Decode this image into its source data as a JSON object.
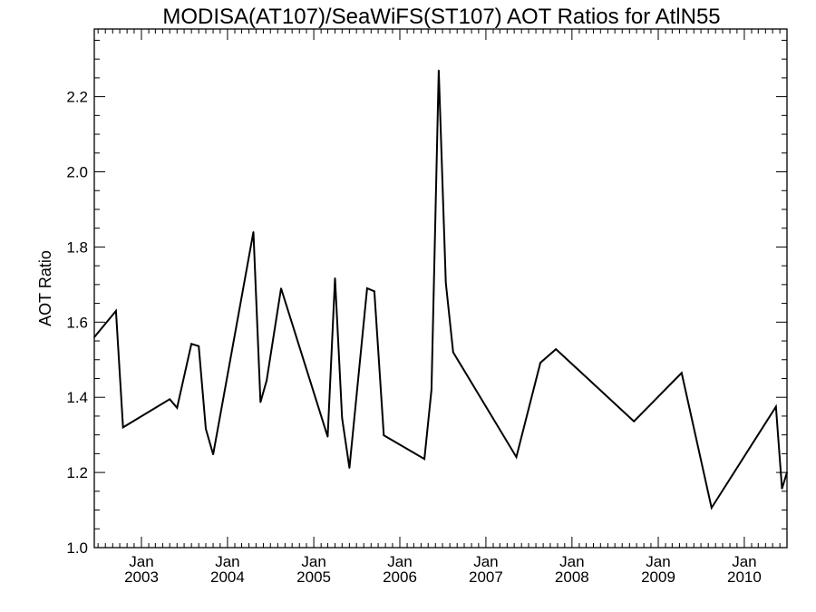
{
  "chart_data": {
    "type": "line",
    "title": "MODISA(AT107)/SeaWiFS(ST107)  AOT Ratios for AtlN55",
    "xlabel": "",
    "ylabel": "AOT Ratio",
    "xlim": [
      "2002-06-15",
      "2010-07-01"
    ],
    "ylim": [
      1.0,
      2.38
    ],
    "y_ticks": [
      "1.0",
      "1.2",
      "1.4",
      "1.6",
      "1.8",
      "2.0",
      "2.2"
    ],
    "x_ticks": [
      {
        "date": "2003-01-01",
        "month": "Jan",
        "year": "2003"
      },
      {
        "date": "2004-01-01",
        "month": "Jan",
        "year": "2004"
      },
      {
        "date": "2005-01-01",
        "month": "Jan",
        "year": "2005"
      },
      {
        "date": "2006-01-01",
        "month": "Jan",
        "year": "2006"
      },
      {
        "date": "2007-01-01",
        "month": "Jan",
        "year": "2007"
      },
      {
        "date": "2008-01-01",
        "month": "Jan",
        "year": "2008"
      },
      {
        "date": "2009-01-01",
        "month": "Jan",
        "year": "2009"
      },
      {
        "date": "2010-01-01",
        "month": "Jan",
        "year": "2010"
      }
    ],
    "grid": false,
    "series": [
      {
        "color": "#000000",
        "points": [
          [
            "2002-06-15",
            1.56
          ],
          [
            "2002-09-15",
            1.63
          ],
          [
            "2002-10-15",
            1.32
          ],
          [
            "2003-05-01",
            1.395
          ],
          [
            "2003-06-01",
            1.372
          ],
          [
            "2003-08-01",
            1.542
          ],
          [
            "2003-09-01",
            1.536
          ],
          [
            "2003-10-01",
            1.316
          ],
          [
            "2003-11-01",
            1.248
          ],
          [
            "2004-04-20",
            1.84
          ],
          [
            "2004-05-20",
            1.387
          ],
          [
            "2004-06-15",
            1.445
          ],
          [
            "2004-08-15",
            1.69
          ],
          [
            "2005-03-01",
            1.295
          ],
          [
            "2005-04-01",
            1.717
          ],
          [
            "2005-05-01",
            1.345
          ],
          [
            "2005-06-01",
            1.212
          ],
          [
            "2005-08-15",
            1.69
          ],
          [
            "2005-09-15",
            1.682
          ],
          [
            "2005-10-25",
            1.299
          ],
          [
            "2006-04-15",
            1.236
          ],
          [
            "2006-05-15",
            1.42
          ],
          [
            "2006-06-15",
            2.27
          ],
          [
            "2006-07-15",
            1.705
          ],
          [
            "2006-08-15",
            1.52
          ],
          [
            "2007-05-10",
            1.241
          ],
          [
            "2007-08-20",
            1.492
          ],
          [
            "2007-10-25",
            1.528
          ],
          [
            "2008-09-20",
            1.336
          ],
          [
            "2009-04-10",
            1.465
          ],
          [
            "2009-08-15",
            1.106
          ],
          [
            "2010-05-15",
            1.375
          ],
          [
            "2010-06-10",
            1.157
          ],
          [
            "2010-07-01",
            1.2
          ]
        ]
      }
    ]
  }
}
